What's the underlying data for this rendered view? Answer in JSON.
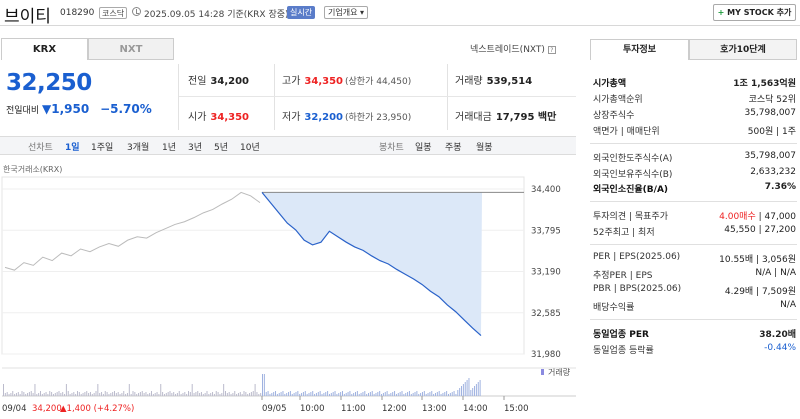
{
  "header": {
    "name": "브이티",
    "code": "018290",
    "market": "코스닥",
    "timestamp": "2025.09.05 14:28 기준(KRX 장중)",
    "realtime": "실시간",
    "overview": "기업개요",
    "mystock_plus": "+",
    "mystock": "MY STOCK 추가"
  },
  "tabs": {
    "krx": "KRX",
    "nxt": "NXT",
    "nxt_link": "넥스트레이드(NXT)",
    "q": "?"
  },
  "price": {
    "current": "32,250",
    "change_label": "전일대비",
    "change": "▼1,950",
    "change_pct": "−5.70%"
  },
  "quote": {
    "prev_close_label": "전일",
    "prev_close": "34,200",
    "high_label": "고가",
    "high": "34,350",
    "upper_limit": "(상한가 44,450)",
    "volume_label": "거래량",
    "volume": "539,514",
    "open_label": "시가",
    "open": "34,350",
    "low_label": "저가",
    "low": "32,200",
    "lower_limit": "(하한가 23,950)",
    "amount_label": "거래대금",
    "amount": "17,795 백만"
  },
  "toolbar": {
    "line": "선차트",
    "d1": "1일",
    "w1": "1주일",
    "m3": "3개월",
    "y1": "1년",
    "y3": "3년",
    "y5": "5년",
    "y10": "10년",
    "candle": "봉차트",
    "daily": "일봉",
    "weekly": "주봉",
    "monthly": "월봉"
  },
  "chart_source": "한국거래소(KRX)",
  "chart_data": {
    "type": "line",
    "series": [
      {
        "values": [
          33250,
          33210,
          33320,
          33280,
          33400,
          33350,
          33460,
          33420,
          33520,
          33480,
          33550,
          33600,
          33560,
          33650,
          33700,
          33680,
          33760,
          33820,
          33880,
          33920,
          33980,
          34050,
          34100,
          34180,
          34250,
          34350,
          34300,
          34200
        ]
      },
      {
        "values": [
          34350,
          34200,
          34050,
          33900,
          33800,
          33650,
          33580,
          33620,
          33780,
          33700,
          33620,
          33550,
          33500,
          33420,
          33350,
          33300,
          33220,
          33150,
          33080,
          33000,
          32900,
          32820,
          32700,
          32600,
          32480,
          32360,
          32250
        ]
      }
    ],
    "y_ticks": [
      "34,400",
      "33,795",
      "33,190",
      "32,585",
      "31,980"
    ],
    "ylim": [
      31980,
      34400
    ],
    "x_ticks": [
      "09/05",
      "10:00",
      "11:00",
      "12:00",
      "13:00",
      "14:00",
      "15:00"
    ],
    "prev_day_label": "09/04",
    "prev_day_close": "34,200",
    "prev_day_change": "▲1,400 (+4.27%)",
    "volume_label": "거래량",
    "colors": {
      "prev_line": "#bbbbbb",
      "today_line": "#2a62c9",
      "fill": "#dce8f8",
      "ref_line": "#888888",
      "volume": "#bbbbcc",
      "volume_today": "#9fb2e0"
    }
  },
  "right": {
    "tab_info": "투자정보",
    "tab_hoga": "호가10단계",
    "market_cap_label": "시가총액",
    "market_cap": "1조 1,563억원",
    "cap_rank_label": "시가총액순위",
    "cap_rank": "코스닥 52위",
    "shares_label": "상장주식수",
    "shares": "35,798,007",
    "par_label": "액면가 | 매매단위",
    "par": "500원 | 1주",
    "foreign_limit_label": "외국인한도주식수(A)",
    "foreign_limit": "35,798,007",
    "foreign_hold_label": "외국인보유주식수(B)",
    "foreign_hold": "2,633,232",
    "foreign_ratio_label": "외국인소진율(B/A)",
    "foreign_ratio": "7.36%",
    "opinion_label": "투자의견 | 목표주가",
    "opinion": "4.00매수",
    "target": "| 47,000",
    "w52_label": "52주최고 | 최저",
    "w52": "45,550 | 27,200",
    "per_label": "PER | EPS(2025.06)",
    "per": "10.55배 | 3,056원",
    "est_per_label": "추정PER | EPS",
    "est_per": "N/A | N/A",
    "pbr_label": "PBR | BPS(2025.06)",
    "pbr": "4.29배 | 7,509원",
    "div_label": "배당수익률",
    "div": "N/A",
    "ind_per_label": "동일업종 PER",
    "ind_per": "38.20배",
    "ind_rate_label": "동일업종 등락률",
    "ind_rate": "-0.44%"
  }
}
